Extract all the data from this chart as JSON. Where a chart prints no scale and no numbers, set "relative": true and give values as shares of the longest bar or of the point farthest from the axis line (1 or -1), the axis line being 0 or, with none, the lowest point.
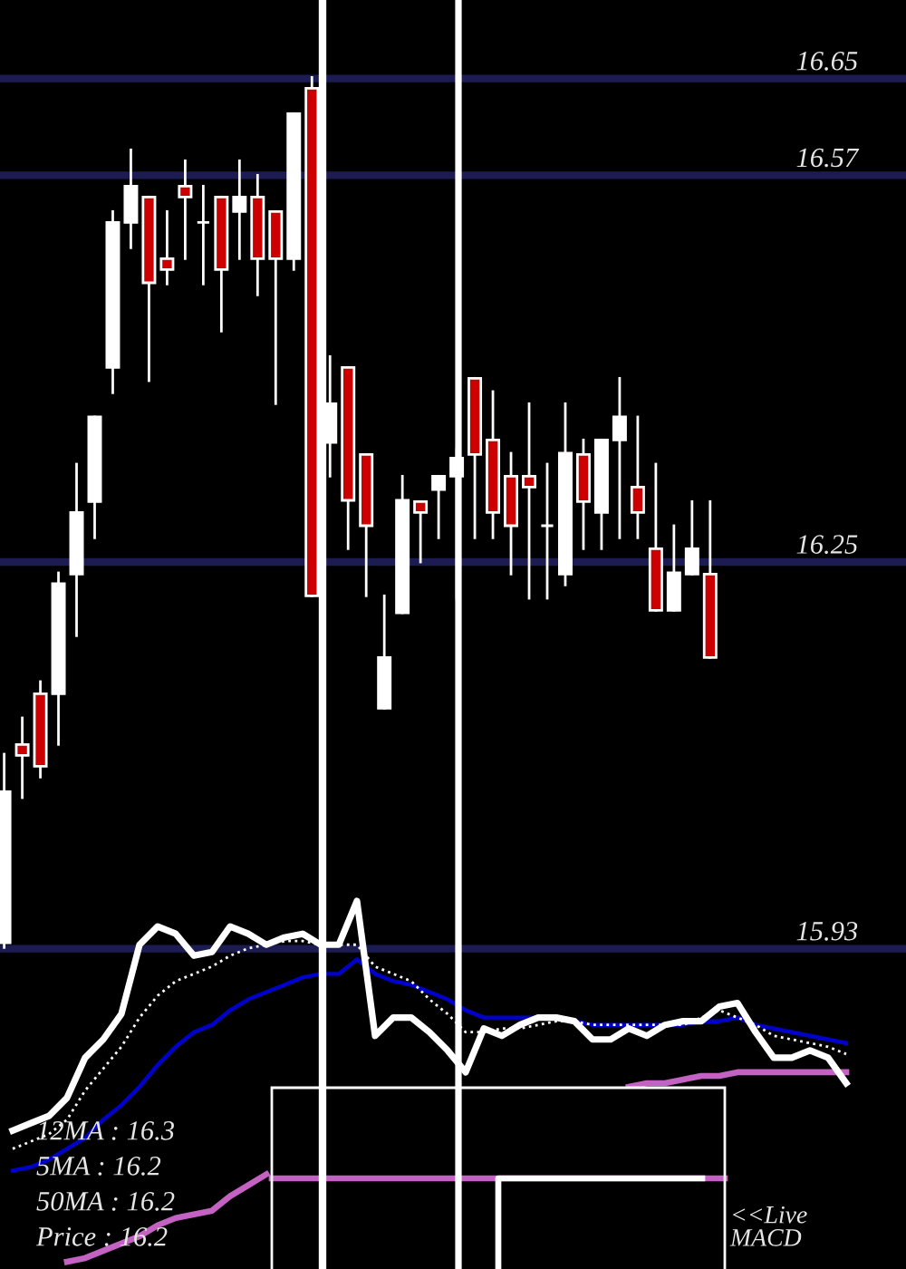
{
  "chart_data": [
    {
      "type": "candlestick",
      "categories": [
        null,
        null,
        null,
        null,
        null,
        null,
        null,
        null,
        null,
        null,
        null,
        null,
        null,
        null,
        null,
        null,
        null,
        null,
        null,
        null,
        null,
        null,
        null,
        null,
        null,
        null,
        null,
        null,
        null,
        null,
        null,
        null,
        null,
        null,
        null,
        null,
        null,
        null,
        null,
        null
      ],
      "ohlc": [
        [
          15.935,
          16.091,
          15.931,
          16.06
        ],
        [
          16.099,
          16.121,
          16.055,
          16.09
        ],
        [
          16.141,
          16.151,
          16.072,
          16.081
        ],
        [
          16.141,
          16.241,
          16.099,
          16.232
        ],
        [
          16.24,
          16.331,
          16.189,
          16.291
        ],
        [
          16.3,
          16.37,
          16.27,
          16.37
        ],
        [
          16.411,
          16.54,
          16.39,
          16.531
        ],
        [
          16.531,
          16.591,
          16.51,
          16.561
        ],
        [
          16.552,
          16.552,
          16.4,
          16.481
        ],
        [
          16.501,
          16.54,
          16.48,
          16.492
        ],
        [
          16.561,
          16.582,
          16.501,
          16.552
        ],
        [
          16.531,
          16.561,
          16.48,
          16.531
        ],
        [
          16.552,
          16.552,
          16.441,
          16.492
        ],
        [
          16.54,
          16.582,
          16.501,
          16.552
        ],
        [
          16.552,
          16.57,
          16.471,
          16.501
        ],
        [
          16.54,
          16.54,
          16.381,
          16.501
        ],
        [
          16.501,
          16.621,
          16.492,
          16.621
        ],
        [
          16.642,
          16.651,
          16.222,
          16.222
        ],
        [
          16.349,
          16.42,
          16.321,
          16.381
        ],
        [
          16.411,
          16.411,
          16.261,
          16.301
        ],
        [
          16.339,
          16.339,
          16.222,
          16.28
        ],
        [
          16.129,
          16.222,
          16.129,
          16.171
        ],
        [
          16.208,
          16.321,
          16.208,
          16.301
        ],
        [
          16.3,
          16.3,
          16.25,
          16.291
        ],
        [
          16.31,
          16.321,
          16.27,
          16.321
        ],
        [
          16.321,
          16.343,
          16.22,
          16.336
        ],
        [
          16.402,
          16.402,
          16.27,
          16.339
        ],
        [
          16.351,
          16.391,
          16.27,
          16.291
        ],
        [
          16.321,
          16.34,
          16.24,
          16.28
        ],
        [
          16.321,
          16.381,
          16.22,
          16.312
        ],
        [
          16.28,
          16.331,
          16.22,
          16.28
        ],
        [
          16.24,
          16.381,
          16.231,
          16.34
        ],
        [
          16.339,
          16.351,
          16.261,
          16.3
        ],
        [
          16.291,
          16.351,
          16.261,
          16.351
        ],
        [
          16.351,
          16.402,
          16.27,
          16.37
        ],
        [
          16.312,
          16.37,
          16.27,
          16.291
        ],
        [
          16.261,
          16.331,
          16.21,
          16.21
        ],
        [
          16.21,
          16.28,
          16.21,
          16.241
        ],
        [
          16.24,
          16.3,
          16.24,
          16.261
        ],
        [
          16.24,
          16.3,
          16.171,
          16.171
        ]
      ],
      "colors": [
        "#ffffff",
        "#cc0000",
        "#cc0000",
        "#ffffff",
        "#ffffff",
        "#ffffff",
        "#ffffff",
        "#ffffff",
        "#cc0000",
        "#cc0000",
        "#cc0000",
        "#ffffff",
        "#cc0000",
        "#ffffff",
        "#cc0000",
        "#cc0000",
        "#ffffff",
        "#cc0000",
        "#ffffff",
        "#cc0000",
        "#cc0000",
        "#ffffff",
        "#ffffff",
        "#cc0000",
        "#ffffff",
        "#ffffff",
        "#cc0000",
        "#cc0000",
        "#cc0000",
        "#cc0000",
        "#ffffff",
        "#ffffff",
        "#cc0000",
        "#ffffff",
        "#ffffff",
        "#cc0000",
        "#cc0000",
        "#ffffff",
        "#ffffff",
        "#cc0000"
      ],
      "ylim": [
        15.665,
        16.715
      ],
      "yticks": [
        15.93,
        16.25,
        16.57,
        16.65
      ],
      "grid": "y",
      "tick_labels": "y"
    },
    {
      "type": "line",
      "relative": true,
      "categories": [
        null,
        null,
        null,
        null,
        null,
        null,
        null,
        null,
        null,
        null,
        null,
        null,
        null,
        null,
        null,
        null,
        null,
        null,
        null,
        null,
        null,
        null,
        null,
        null,
        null,
        null,
        null,
        null,
        null,
        null,
        null,
        null,
        null,
        null,
        null,
        null,
        null,
        null,
        null,
        null,
        null,
        null,
        null,
        null,
        null,
        null,
        null
      ],
      "series": [
        {
          "color": "#c462c4",
          "values": [
            null,
            null,
            null,
            0.01,
            0.02,
            0.04,
            0.06,
            0.08,
            0.11,
            0.13,
            0.14,
            0.15,
            0.19,
            0.22,
            0.25,
            null,
            null,
            null,
            null,
            null,
            null,
            null,
            null,
            null,
            null,
            null,
            null,
            null,
            null,
            null,
            null,
            null,
            null,
            null,
            0.49,
            0.5,
            0.5,
            0.51,
            0.52,
            0.52,
            0.53,
            0.53,
            0.53,
            0.53,
            0.53,
            0.53,
            0.53
          ]
        },
        {
          "color": "#0000cc",
          "values": [
            0.26,
            0.27,
            0.29,
            0.32,
            0.35,
            0.4,
            0.44,
            0.49,
            0.55,
            0.6,
            0.64,
            0.66,
            0.7,
            0.73,
            0.75,
            0.77,
            0.79,
            0.8,
            0.8,
            0.84,
            0.8,
            0.78,
            0.77,
            0.75,
            0.73,
            0.7,
            0.68,
            0.68,
            0.68,
            0.68,
            0.68,
            0.67,
            0.66,
            0.66,
            0.66,
            0.66,
            0.66,
            0.66,
            0.67,
            0.67,
            0.68,
            0.66,
            0.65,
            0.64,
            0.63,
            0.62,
            0.61
          ]
        },
        {
          "color": "#ffffff",
          "line_style": "dotted",
          "values": [
            0.32,
            0.34,
            0.36,
            0.4,
            0.48,
            0.54,
            0.6,
            0.68,
            0.74,
            0.78,
            0.8,
            0.82,
            0.85,
            0.87,
            0.88,
            0.89,
            0.89,
            0.88,
            0.88,
            0.88,
            0.82,
            0.8,
            0.78,
            0.73,
            0.69,
            0.64,
            0.64,
            0.65,
            0.65,
            0.66,
            0.67,
            0.67,
            0.66,
            0.66,
            0.66,
            0.66,
            0.66,
            0.66,
            0.68,
            0.7,
            0.68,
            0.66,
            0.63,
            0.62,
            0.61,
            0.6,
            0.58
          ]
        },
        {
          "color": "#ffffff",
          "values": [
            0.37,
            0.39,
            0.41,
            0.46,
            0.57,
            0.62,
            0.69,
            0.88,
            0.93,
            0.91,
            0.85,
            0.86,
            0.93,
            0.91,
            0.88,
            0.9,
            0.91,
            0.88,
            0.88,
            1.0,
            0.63,
            0.68,
            0.68,
            0.64,
            0.59,
            0.53,
            0.65,
            0.63,
            0.66,
            0.68,
            0.68,
            0.67,
            0.62,
            0.62,
            0.65,
            0.63,
            0.66,
            0.67,
            0.67,
            0.71,
            0.72,
            0.64,
            0.57,
            0.57,
            0.59,
            0.57,
            0.5
          ]
        }
      ],
      "annotations": [
        "12MA : 16.3",
        "5MA : 16.2",
        "50MA : 16.2",
        "Price : 16.2"
      ]
    },
    {
      "type": "line",
      "relative": true,
      "categories": [
        null,
        null,
        null,
        null,
        null,
        null,
        null,
        null,
        null,
        null,
        null,
        null,
        null,
        null,
        null,
        null,
        null,
        null,
        null,
        null,
        null
      ],
      "series": [
        {
          "color": "#c462c4",
          "values": [
            1,
            1,
            1,
            1,
            1,
            1,
            1,
            1,
            1,
            1,
            1,
            1,
            1,
            1,
            1,
            1,
            1,
            1,
            1,
            1,
            1
          ]
        },
        {
          "type": "step",
          "color": "#ffffff",
          "values": [
            null,
            null,
            null,
            null,
            null,
            null,
            null,
            null,
            null,
            null,
            0,
            1,
            1,
            1,
            1,
            1,
            1,
            1,
            1,
            1,
            null
          ]
        }
      ],
      "annotations": [
        "<<Live\nMACD"
      ]
    }
  ]
}
